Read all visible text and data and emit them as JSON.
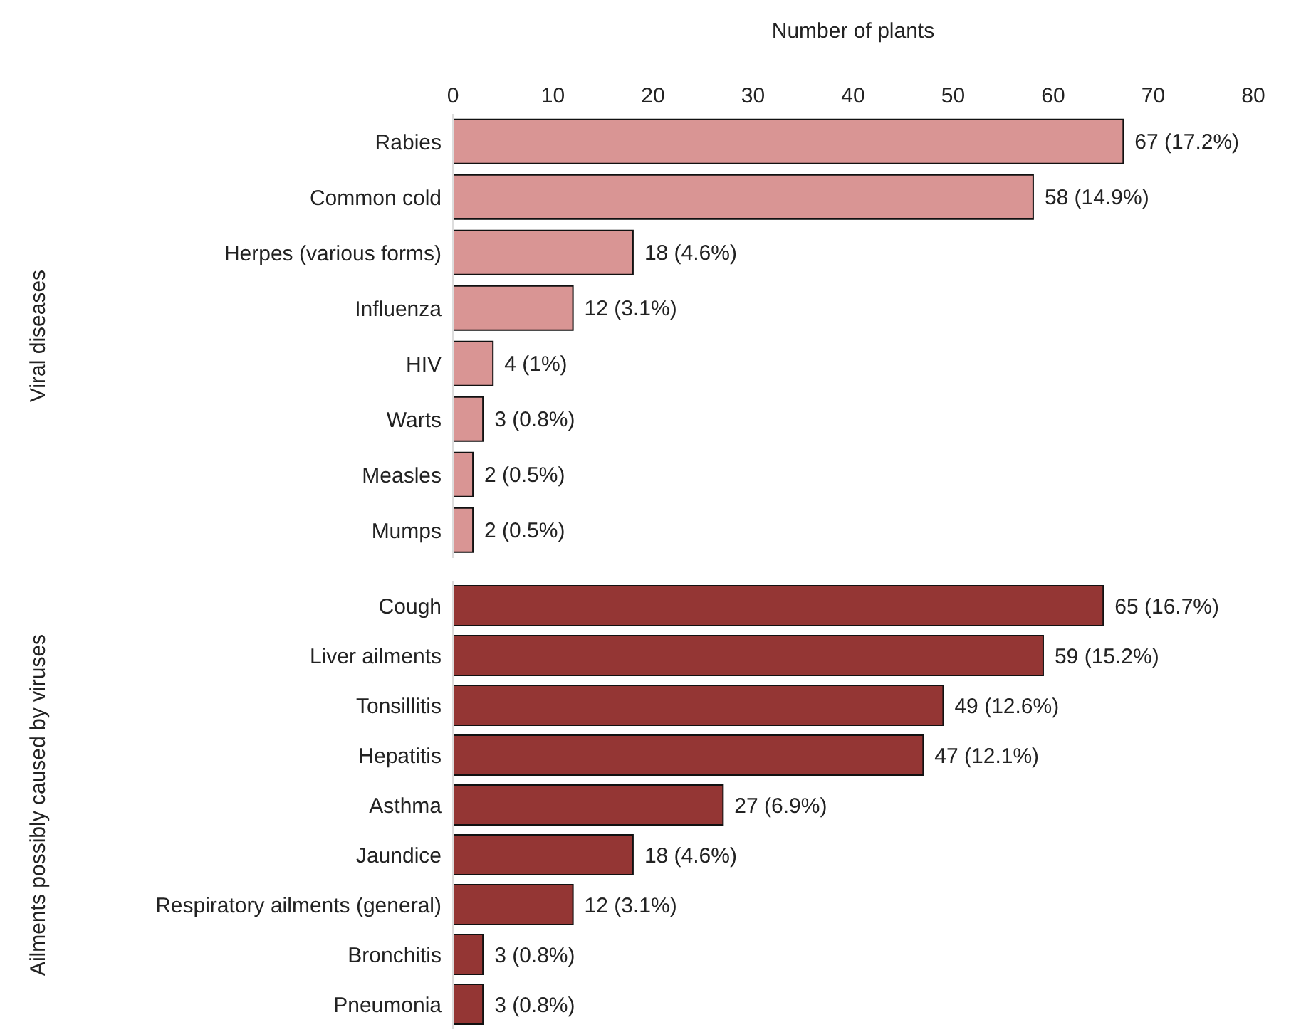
{
  "chart_data": [
    {
      "type": "bar",
      "orientation": "horizontal",
      "xlabel": "Number of plants",
      "ylabel": "Viral diseases",
      "categories": [
        "Rabies",
        "Common cold",
        "Herpes (various forms)",
        "Influenza",
        "HIV",
        "Warts",
        "Measles",
        "Mumps"
      ],
      "values": [
        67,
        58,
        18,
        12,
        4,
        3,
        2,
        2
      ],
      "value_labels": [
        "67 (17.2%)",
        "58 (14.9%)",
        "18 (4.6%)",
        "12 (3.1%)",
        "4 (1%)",
        "3 (0.8%)",
        "2 (0.5%)",
        "2 (0.5%)"
      ],
      "color": "#d99594",
      "xlim": [
        0,
        80
      ],
      "xticks": [
        0,
        10,
        20,
        30,
        40,
        50,
        60,
        70,
        80
      ]
    },
    {
      "type": "bar",
      "orientation": "horizontal",
      "ylabel": "Ailments possibly caused by viruses",
      "categories": [
        "Cough",
        "Liver ailments",
        "Tonsillitis",
        "Hepatitis",
        "Asthma",
        "Jaundice",
        "Respiratory ailments (general)",
        "Bronchitis",
        "Pneumonia"
      ],
      "values": [
        65,
        59,
        49,
        47,
        27,
        18,
        12,
        3,
        3
      ],
      "value_labels": [
        "65 (16.7%)",
        "59 (15.2%)",
        "49 (12.6%)",
        "47 (12.1%)",
        "27 (6.9%)",
        "18 (4.6%)",
        "12 (3.1%)",
        "3 (0.8%)",
        "3 (0.8%)"
      ],
      "color": "#943634",
      "xlim": [
        0,
        80
      ],
      "xticks": [
        0,
        10,
        20,
        30,
        40,
        50,
        60,
        70,
        80
      ],
      "tick_labels": "y"
    }
  ]
}
